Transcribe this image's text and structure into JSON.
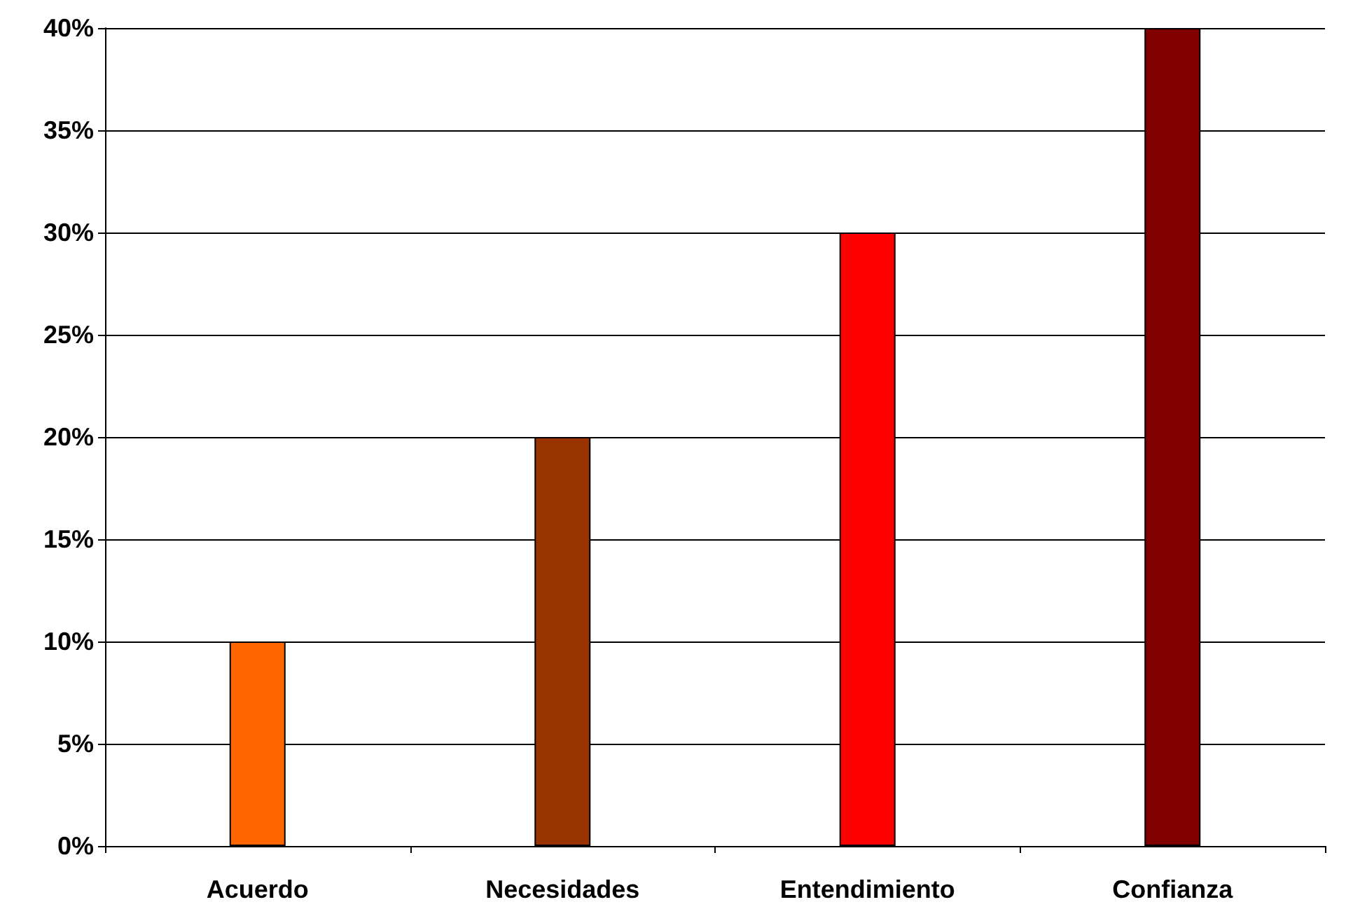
{
  "chart_data": {
    "type": "bar",
    "categories": [
      "Acuerdo",
      "Necesidades",
      "Entendimiento",
      "Confianza"
    ],
    "values": [
      10,
      20,
      30,
      40
    ],
    "colors": [
      "#ff6600",
      "#993300",
      "#ff0000",
      "#800000"
    ],
    "ylim": [
      0,
      40
    ],
    "yticks": [
      {
        "value": 0,
        "label": "0%"
      },
      {
        "value": 5,
        "label": "5%"
      },
      {
        "value": 10,
        "label": "10%"
      },
      {
        "value": 15,
        "label": "15%"
      },
      {
        "value": 20,
        "label": "20%"
      },
      {
        "value": 25,
        "label": "25%"
      },
      {
        "value": 30,
        "label": "30%"
      },
      {
        "value": 35,
        "label": "35%"
      },
      {
        "value": 40,
        "label": "40%"
      }
    ],
    "grid": "y"
  }
}
